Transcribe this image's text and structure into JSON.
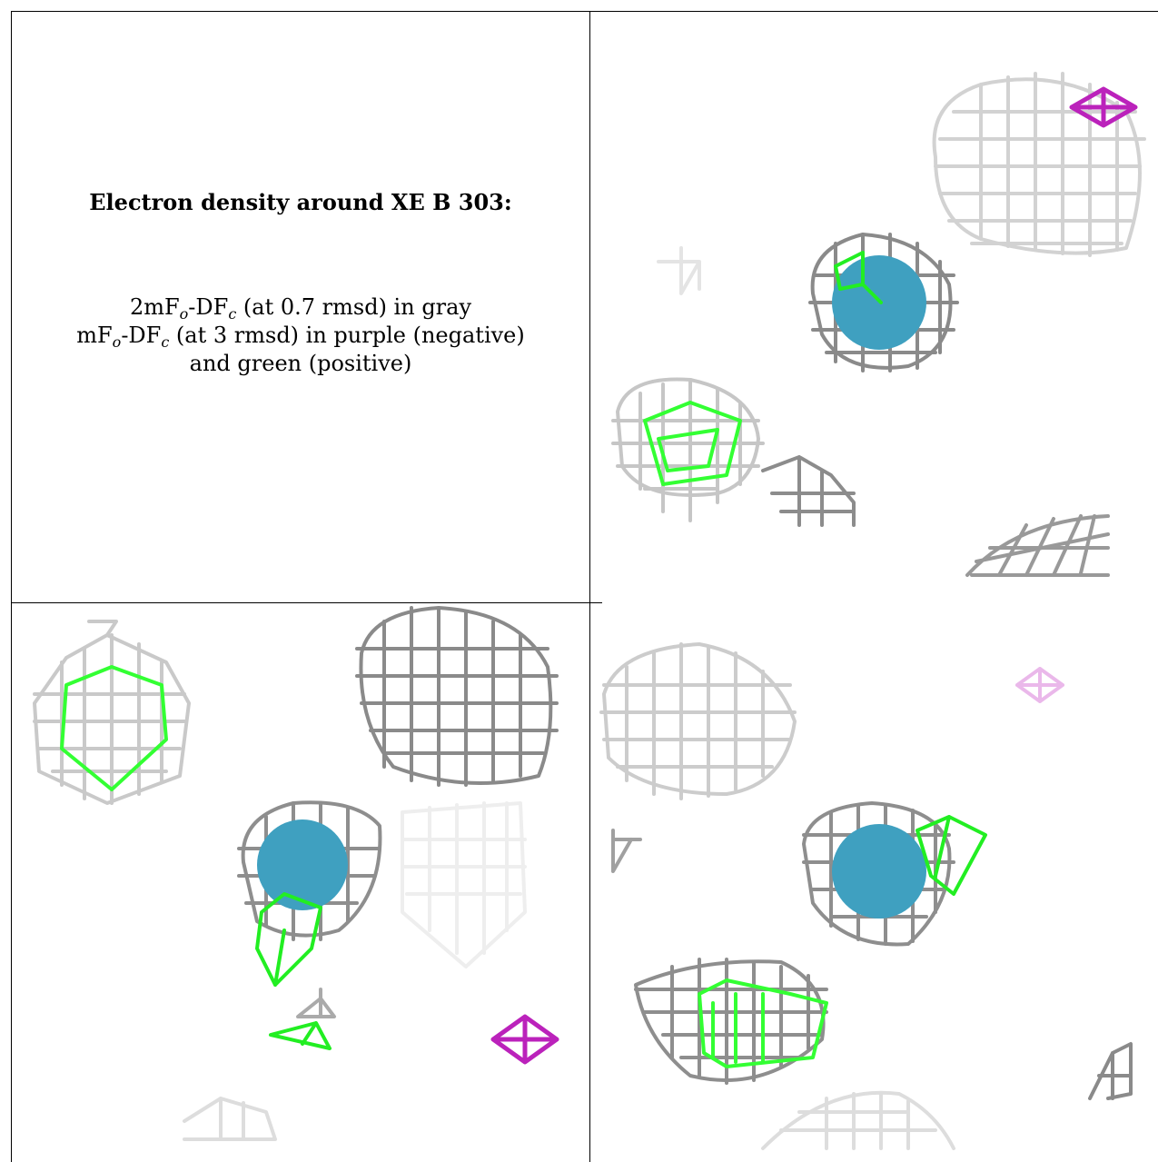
{
  "caption": {
    "title": "Electron density around XE B 303:",
    "line1_prefix": "2mF",
    "line1_sub1": "o",
    "line1_mid": "-DF",
    "line1_sub2": "c",
    "line1_suffix": " (at 0.7 rmsd) in gray",
    "line2_prefix": "mF",
    "line2_sub1": "o",
    "line2_mid": "-DF",
    "line2_sub2": "c",
    "line2_suffix": " (at 3 rmsd) in purple (negative)",
    "line3": "and green (positive)"
  },
  "colors": {
    "gray_mesh_dark": "#7f7f7f",
    "gray_mesh_light": "#cfcfcf",
    "green_positive": "#22ee22",
    "purple_negative": "#cc22cc",
    "xenon_atom": "#3fa0c0"
  }
}
